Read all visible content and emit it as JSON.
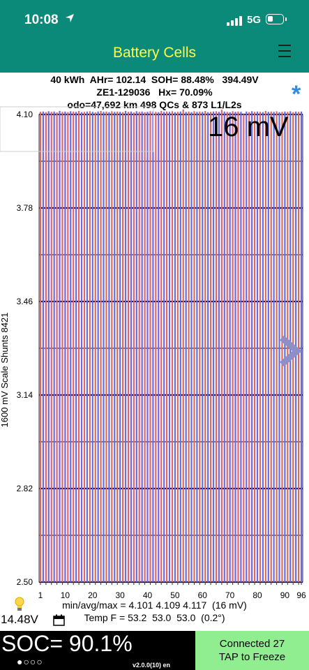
{
  "status_bar": {
    "time": "10:08",
    "network": "5G"
  },
  "header": {
    "title": "Battery Cells"
  },
  "info": {
    "line1": "40 kWh  AHr= 102.14  SOH= 88.48%   394.49V",
    "line2": "ZE1-129036   Hx= 70.09%",
    "line3": "odo=47,692 km 498 QCs & 873 L1/L2s"
  },
  "chart_data": {
    "type": "bar",
    "title": "",
    "xlabel": "",
    "ylabel": "1600 mV Scale   Shunts 8421",
    "ylim": [
      2.5,
      4.1
    ],
    "yticks": [
      "4.10",
      "3.78",
      "3.46",
      "3.14",
      "2.82",
      "2.50"
    ],
    "xticks": [
      "1",
      "10",
      "20",
      "30",
      "40",
      "50",
      "60",
      "70",
      "80",
      "90",
      "96"
    ],
    "categories_count": 96,
    "annotation": "16 mV",
    "colors": {
      "odd": "#e06666",
      "even": "#6a6ae6",
      "grid_major": "#10105a",
      "grid_minor": "#222244"
    },
    "values": [
      4.109,
      4.11,
      4.108,
      4.111,
      4.109,
      4.11,
      4.107,
      4.112,
      4.109,
      4.11,
      4.108,
      4.111,
      4.11,
      4.109,
      4.112,
      4.108,
      4.109,
      4.11,
      4.111,
      4.109,
      4.107,
      4.11,
      4.112,
      4.109,
      4.11,
      4.108,
      4.111,
      4.109,
      4.11,
      4.109,
      4.108,
      4.112,
      4.109,
      4.11,
      4.107,
      4.111,
      4.109,
      4.11,
      4.108,
      4.109,
      4.111,
      4.11,
      4.109,
      4.108,
      4.112,
      4.109,
      4.11,
      4.109,
      4.111,
      4.108,
      4.109,
      4.11,
      4.117,
      4.109,
      4.11,
      4.108,
      4.111,
      4.109,
      4.11,
      4.109,
      4.112,
      4.108,
      4.109,
      4.11,
      4.111,
      4.109,
      4.116,
      4.11,
      4.109,
      4.108,
      4.111,
      4.109,
      4.11,
      4.109,
      4.101,
      4.11,
      4.108,
      4.111,
      4.109,
      4.11,
      4.109,
      4.108,
      4.112,
      4.109,
      4.11,
      4.109,
      4.111,
      4.108,
      4.109,
      4.11,
      4.109,
      4.111,
      4.108,
      4.11,
      4.109,
      4.11
    ]
  },
  "stats": {
    "minavgmax": "min/avg/max = 4.101 4.109 4.117  (16 mV)",
    "temp": "Temp F = 53.2  53.0  53.0  (0.2°)"
  },
  "footer": {
    "voltage": "14.48V",
    "soc": "SOC= 90.1%",
    "dots": "●○○○",
    "version": "v2.0.0(10) en",
    "connected": "Connected 27",
    "tap": "TAP to Freeze"
  }
}
